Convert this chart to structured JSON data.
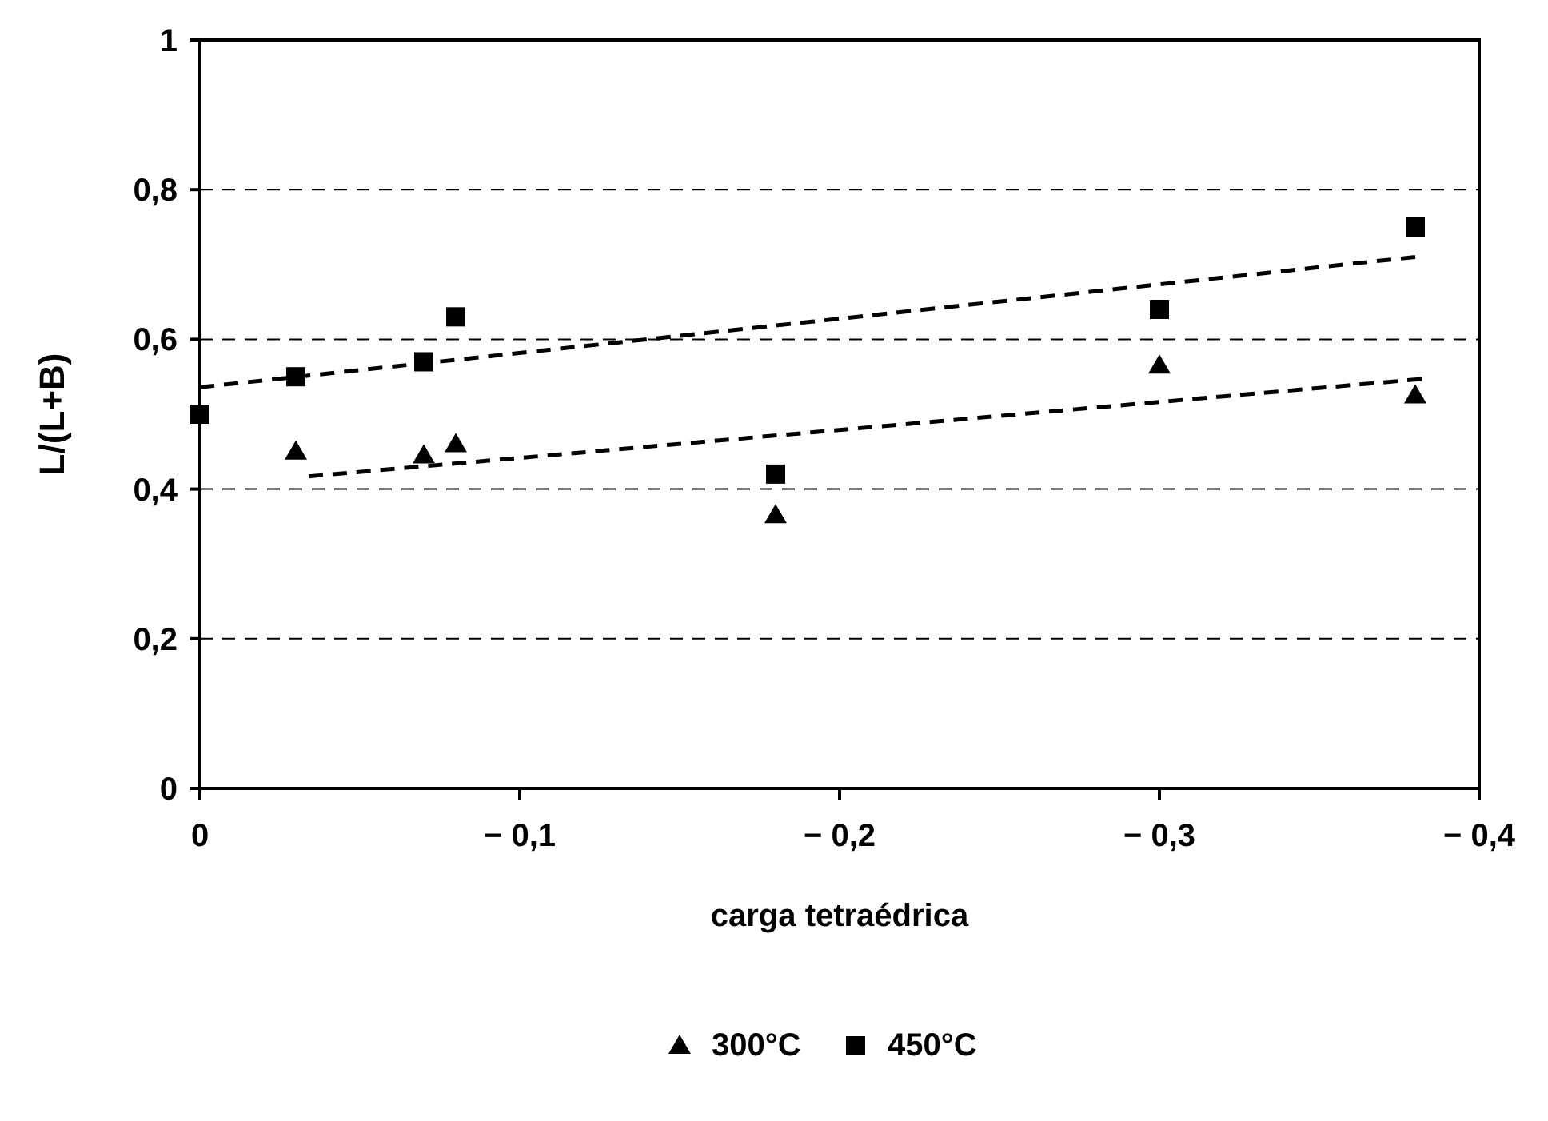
{
  "chart_data": {
    "type": "scatter",
    "xlabel": "carga tetraédrica",
    "ylabel": "L/(L+B)",
    "xlim": [
      0,
      -0.4
    ],
    "xticks": [
      0,
      {
        "value": -0.1,
        "label": "− 0,1"
      },
      {
        "value": -0.2,
        "label": "− 0,2"
      },
      {
        "value": -0.3,
        "label": "− 0,3"
      },
      {
        "value": -0.4,
        "label": "− 0,4"
      }
    ],
    "ylim": [
      0,
      1
    ],
    "yticks": [
      0,
      {
        "value": 0.2,
        "label": "0,2"
      },
      {
        "value": 0.4,
        "label": "0,4"
      },
      {
        "value": 0.6,
        "label": "0,6"
      },
      {
        "value": 0.8,
        "label": "0,8"
      },
      1
    ],
    "grid": "y",
    "legend": "bottom",
    "series": [
      {
        "name": "300°C",
        "color": "#000000",
        "marker": "triangle",
        "x": [
          -0.03,
          -0.07,
          -0.08,
          -0.18,
          -0.3,
          -0.38
        ],
        "values": [
          0.45,
          0.445,
          0.46,
          0.365,
          0.565,
          0.525
        ]
      },
      {
        "name": "450°C",
        "color": "#000000",
        "marker": "square",
        "x": [
          0,
          -0.03,
          -0.07,
          -0.08,
          -0.18,
          -0.3,
          -0.38
        ],
        "values": [
          0.5,
          0.55,
          0.57,
          0.63,
          0.42,
          0.64,
          0.75
        ]
      },
      {
        "type": "line",
        "color": "#000000",
        "marker": "none",
        "line_style": "dashed",
        "x": [
          -0.034,
          -0.382
        ],
        "values": [
          0.417,
          0.547
        ]
      },
      {
        "type": "line",
        "color": "#000000",
        "marker": "none",
        "line_style": "dashed",
        "x": [
          0,
          -0.38
        ],
        "values": [
          0.536,
          0.71
        ]
      }
    ]
  }
}
